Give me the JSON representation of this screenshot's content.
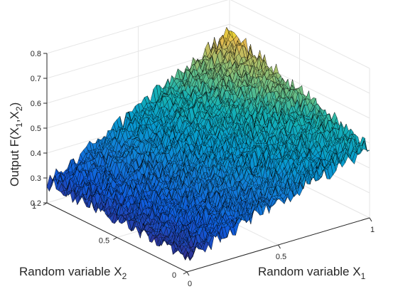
{
  "chart_data": {
    "type": "surface",
    "title": "",
    "x_axis": {
      "label": "Random variable X",
      "label_subscript": "1",
      "range": [
        0,
        1
      ],
      "ticks": [
        "0",
        "0.5",
        "1"
      ]
    },
    "y_axis": {
      "label": "Random variable X",
      "label_subscript": "2",
      "range": [
        0,
        1
      ],
      "ticks": [
        "0",
        "0.5",
        "1"
      ]
    },
    "z_axis": {
      "label_parts": [
        "Output  F(X",
        "1",
        ",X",
        "2",
        ")"
      ],
      "range": [
        0.2,
        0.8
      ],
      "ticks": [
        "0.2",
        "0.3",
        "0.4",
        "0.5",
        "0.6",
        "0.7",
        "0.8"
      ]
    },
    "surface": {
      "description_values": "noisy surface increasing with X1 and X2",
      "corner_values": {
        "x1_0_x2_0": 0.26,
        "x1_1_x2_0": 0.48,
        "x1_0_x2_1": 0.28,
        "x1_1_x2_1": 0.67
      },
      "noise_amplitude": 0.03,
      "grid_resolution": 60,
      "colormap": "parula",
      "edge_color": "#000000"
    },
    "grid": true,
    "box": false,
    "colors": {
      "axis": "#262626",
      "grid": "#e6e6e6"
    }
  }
}
